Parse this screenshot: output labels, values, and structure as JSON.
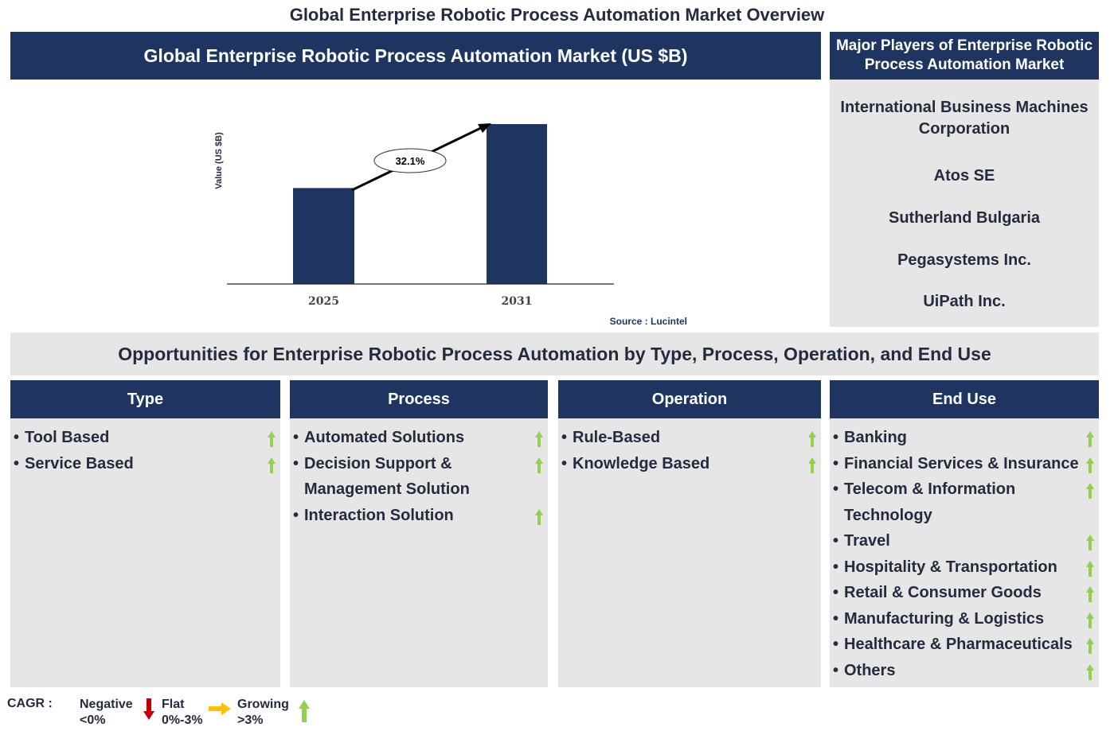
{
  "title": "Global Enterprise Robotic Process Automation Market Overview",
  "chart_header": "Global Enterprise Robotic Process Automation Market (US $B)",
  "chart_data": {
    "type": "bar",
    "categories": [
      "2025",
      "2031"
    ],
    "values_relative": [
      0.6,
      1.0
    ],
    "ylabel": "Value (US $B)",
    "annotation": "32.1%",
    "source": "Source : Lucintel",
    "bar_color": "#1f3561",
    "grid": false
  },
  "players": {
    "header": "Major Players of Enterprise Robotic Process Automation Market",
    "items": [
      "International Business Machines Corporation",
      "Atos SE",
      "Sutherland Bulgaria",
      "Pegasystems Inc.",
      "UiPath Inc."
    ]
  },
  "opportunities_title": "Opportunities for Enterprise Robotic Process Automation by Type, Process, Operation, and End Use",
  "columns": [
    {
      "header": "Type",
      "items": [
        "Tool Based",
        "Service Based"
      ]
    },
    {
      "header": "Process",
      "items": [
        "Automated Solutions",
        "Decision Support & Management Solution",
        "Interaction Solution"
      ]
    },
    {
      "header": "Operation",
      "items": [
        "Rule-Based",
        "Knowledge Based"
      ]
    },
    {
      "header": "End Use",
      "items": [
        "Banking",
        "Financial Services & Insurance",
        "Telecom & Information Technology",
        "Travel",
        "Hospitality & Transportation",
        "Retail & Consumer Goods",
        "Manufacturing & Logistics",
        "Healthcare & Pharmaceuticals",
        "Others"
      ]
    }
  ],
  "legend": {
    "label": "CAGR :",
    "negative": "Negative",
    "negative_range": "<0%",
    "flat": "Flat",
    "flat_range": "0%-3%",
    "growing": "Growing",
    "growing_range": ">3%",
    "colors": {
      "negative": "#c00000",
      "flat": "#ffc000",
      "growing": "#92d050"
    }
  }
}
